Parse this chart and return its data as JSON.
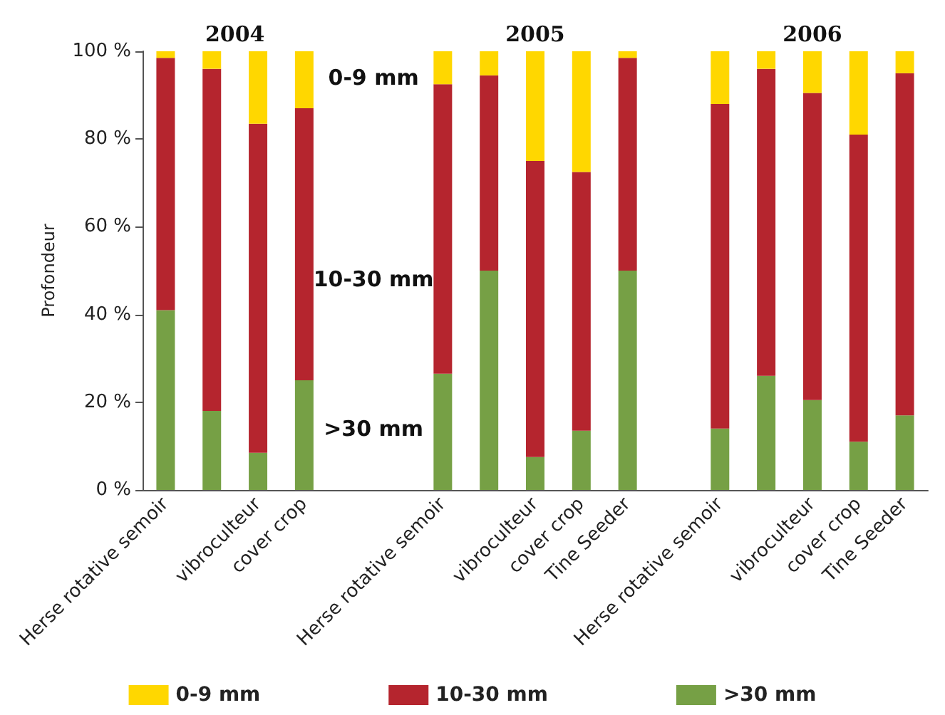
{
  "chart_data": {
    "type": "bar",
    "stacked": true,
    "ylabel": "Profondeur",
    "categories": [
      "Herse rotative semoir",
      null,
      "vibroculteur",
      "cover crop",
      null,
      null,
      "Herse rotative semoir",
      null,
      "vibroculteur",
      "cover crop",
      "Tine Seeder",
      null,
      "Herse rotative semoir",
      null,
      "vibroculteur",
      "cover crop",
      "Tine Seeder"
    ],
    "series": [
      {
        "name": ">30 mm",
        "color": "#76a045",
        "values": [
          41,
          18,
          8.5,
          25,
          null,
          null,
          26.5,
          50,
          7.5,
          13.5,
          50,
          null,
          14,
          26,
          20.5,
          11,
          17
        ]
      },
      {
        "name": "10-30 mm",
        "color": "#b5252e",
        "values": [
          57.5,
          78,
          75,
          62,
          null,
          null,
          66,
          44.5,
          67.5,
          59,
          48.5,
          null,
          74,
          70,
          70,
          70,
          78
        ]
      },
      {
        "name": "0-9 mm",
        "color": "#ffd700",
        "values": [
          1.5,
          4,
          16.5,
          13,
          null,
          null,
          7.5,
          5.5,
          25,
          27.5,
          1.5,
          null,
          12,
          4,
          9.5,
          19,
          5
        ]
      }
    ],
    "ylim": [
      0,
      100
    ],
    "yticks": [
      {
        "value": 0,
        "label": "0 %"
      },
      {
        "value": 20,
        "label": "20 %"
      },
      {
        "value": 40,
        "label": "40 %"
      },
      {
        "value": 60,
        "label": "60 %"
      },
      {
        "value": 80,
        "label": "80 %"
      },
      {
        "value": 100,
        "label": "100 %"
      }
    ],
    "annotations": [
      "2004",
      "2005",
      "2006",
      "0-9 mm",
      "10-30 mm",
      ">30 mm"
    ],
    "grid": false,
    "legend": "bottom"
  }
}
